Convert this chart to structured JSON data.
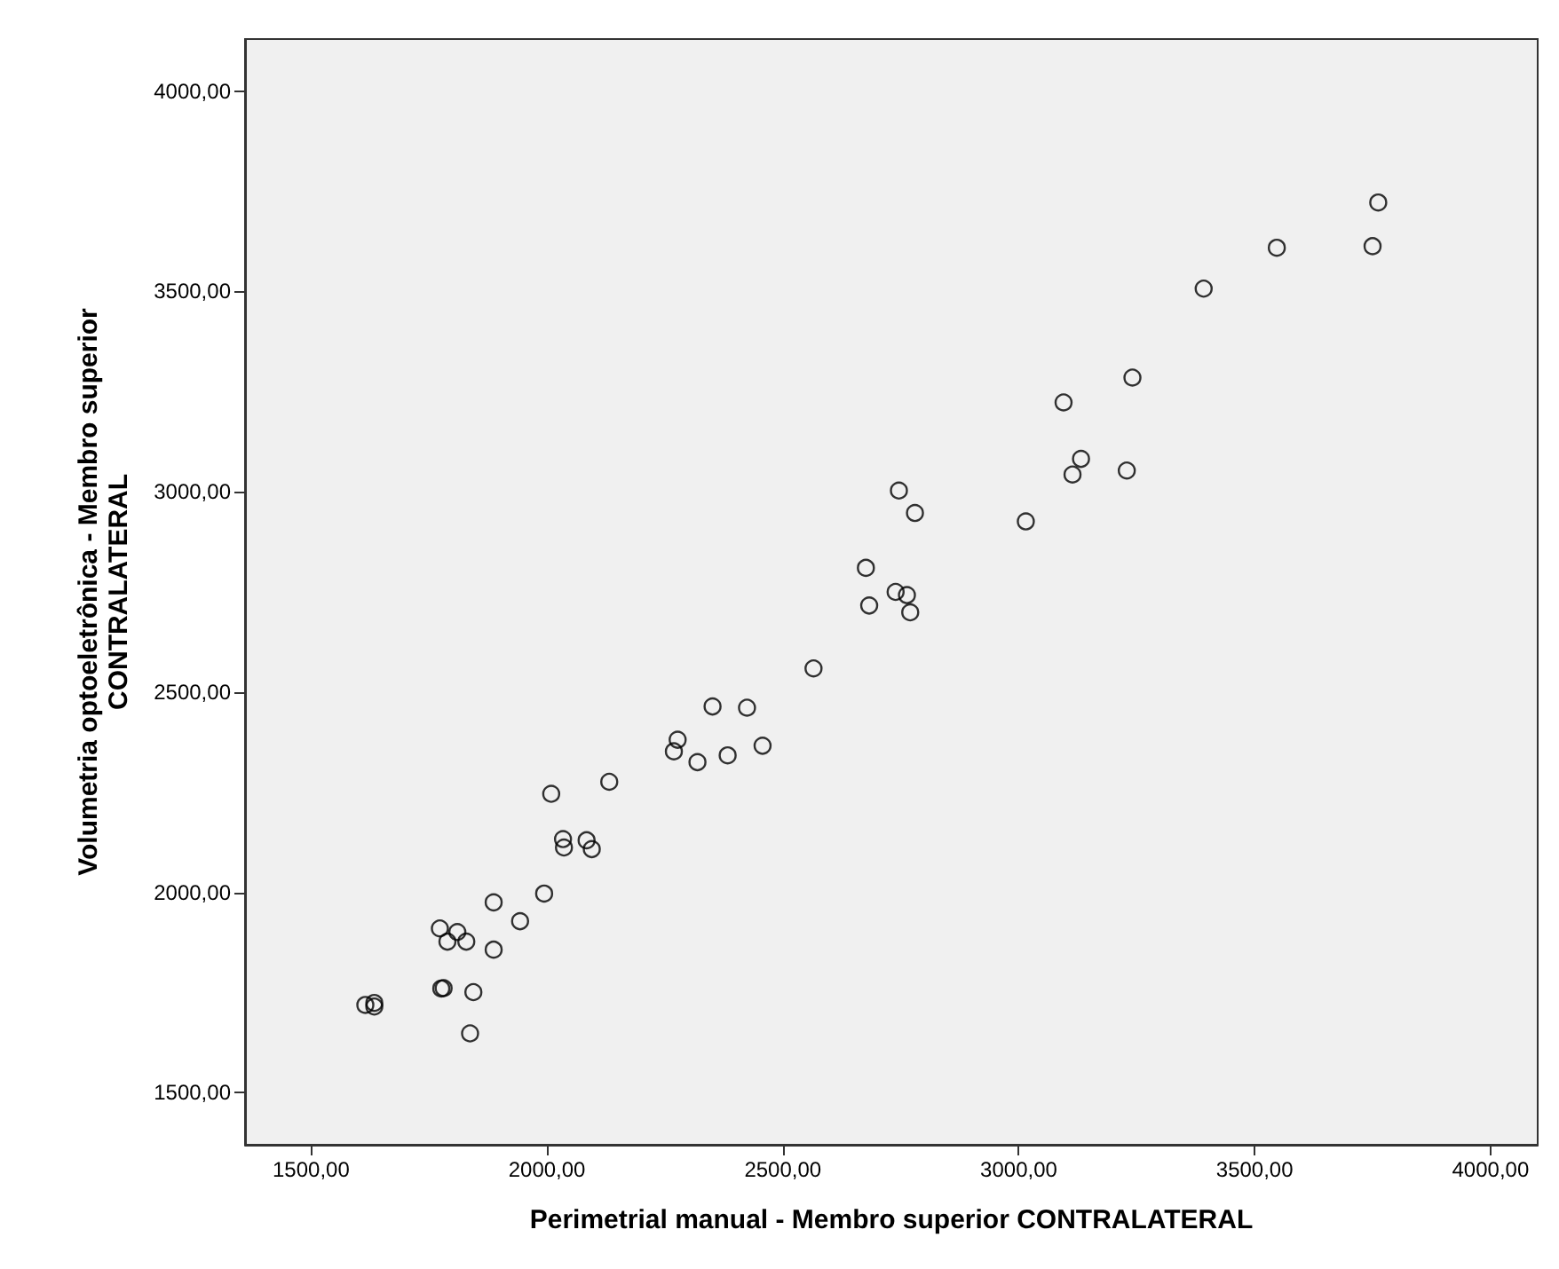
{
  "chart_data": {
    "type": "scatter",
    "xlabel": "Perimetrial manual - Membro superior CONTRALATERAL",
    "ylabel": "Volumetria optoeletrônica - Membro superior\nCONTRALATERAL",
    "x": [
      3762,
      3750,
      3547,
      3392,
      3241,
      3095,
      3132,
      3114,
      3229,
      2746,
      2780,
      3015,
      2676,
      2739,
      2763,
      2683,
      2770,
      2565,
      2351,
      2424,
      2277,
      2269,
      2319,
      2383,
      2457,
      2132,
      2009,
      2034,
      2036,
      2084,
      2095,
      1994,
      1887,
      1943,
      1773,
      1810,
      1789,
      1829,
      1887,
      1781,
      1776,
      1844,
      1837,
      1615,
      1634,
      1634
    ],
    "values": [
      3722,
      3613,
      3609,
      3507,
      3285,
      3223,
      3082,
      3043,
      3053,
      3003,
      2947,
      2926,
      2810,
      2750,
      2742,
      2716,
      2699,
      2559,
      2464,
      2461,
      2381,
      2352,
      2325,
      2342,
      2366,
      2276,
      2246,
      2133,
      2112,
      2130,
      2108,
      1997,
      1975,
      1928,
      1910,
      1901,
      1877,
      1877,
      1857,
      1761,
      1760,
      1751,
      1648,
      1719,
      1724,
      1715
    ],
    "color": "#000000",
    "marker": "circle",
    "xlim": [
      1360,
      4100
    ],
    "ylim": [
      1370,
      4130
    ],
    "xticks": [
      {
        "value": 1500,
        "label": "1500,00"
      },
      {
        "value": 2000,
        "label": "2000,00"
      },
      {
        "value": 2500,
        "label": "2500,00"
      },
      {
        "value": 3000,
        "label": "3000,00"
      },
      {
        "value": 3500,
        "label": "3500,00"
      },
      {
        "value": 4000,
        "label": "4000,00"
      }
    ],
    "yticks": [
      {
        "value": 1500,
        "label": "1500,00"
      },
      {
        "value": 2000,
        "label": "2000,00"
      },
      {
        "value": 2500,
        "label": "2500,00"
      },
      {
        "value": 3000,
        "label": "3000,00"
      },
      {
        "value": 3500,
        "label": "3500,00"
      },
      {
        "value": 4000,
        "label": "4000,00"
      }
    ],
    "grid": false
  }
}
